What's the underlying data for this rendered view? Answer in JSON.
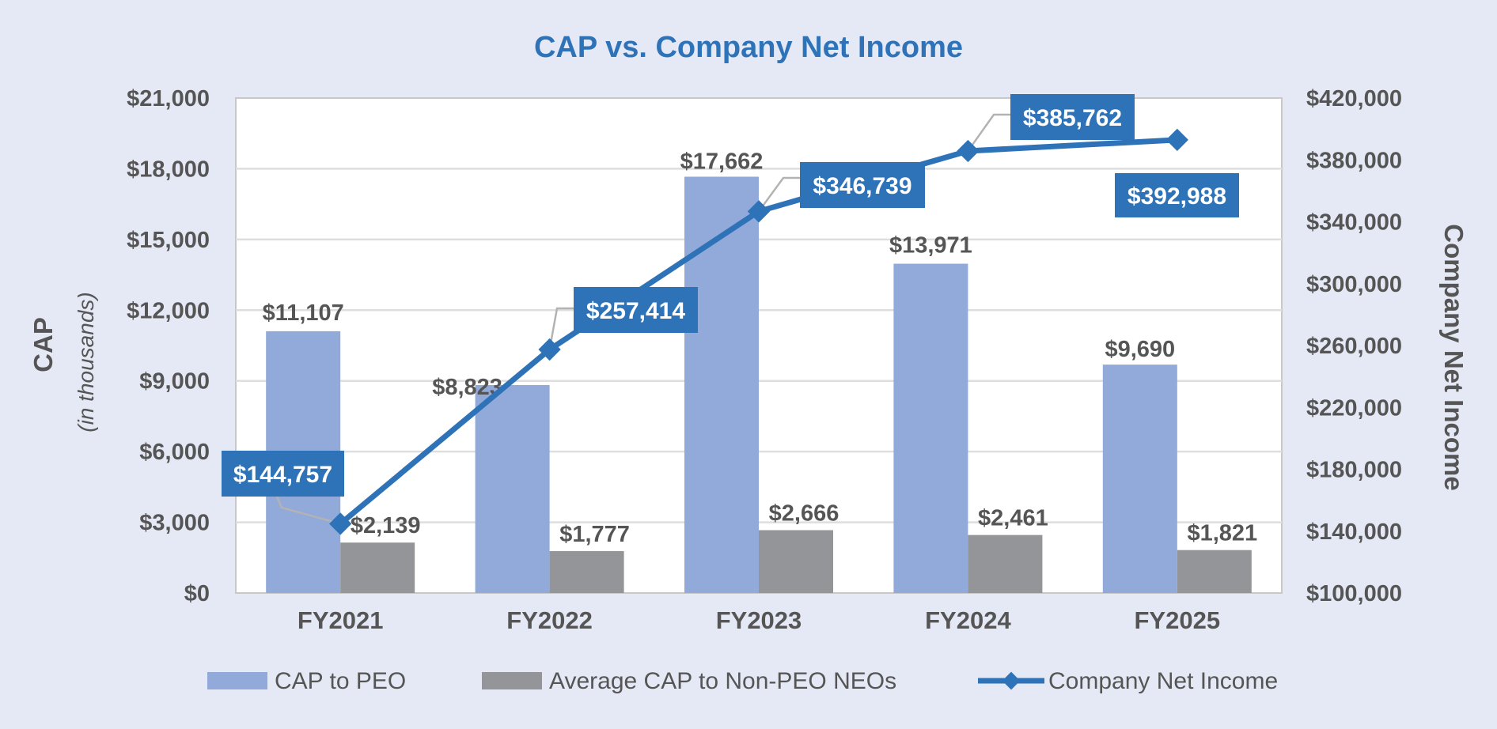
{
  "chart_data": {
    "type": "bar+line",
    "title": "CAP vs. Company Net Income",
    "categories": [
      "FY2021",
      "FY2022",
      "FY2023",
      "FY2024",
      "FY2025"
    ],
    "y_left": {
      "label": "CAP",
      "sublabel": "(in thousands)",
      "min": 0,
      "max": 21000,
      "ticks": [
        0,
        3000,
        6000,
        9000,
        12000,
        15000,
        18000,
        21000
      ],
      "tick_labels": [
        "$0",
        "$3,000",
        "$6,000",
        "$9,000",
        "$12,000",
        "$15,000",
        "$18,000",
        "$21,000"
      ]
    },
    "y_right": {
      "label": "Company Net Income",
      "min": 100000,
      "max": 420000,
      "ticks": [
        100000,
        140000,
        180000,
        220000,
        260000,
        300000,
        340000,
        380000,
        420000
      ],
      "tick_labels": [
        "$100,000",
        "$140,000",
        "$180,000",
        "$220,000",
        "$260,000",
        "$300,000",
        "$340,000",
        "$380,000",
        "$420,000"
      ]
    },
    "series": [
      {
        "name": "CAP to PEO",
        "kind": "bar",
        "axis": "left",
        "color": "#91aad9",
        "values": [
          11107,
          8823,
          17662,
          13971,
          9690
        ],
        "labels": [
          "$11,107",
          "$8,823",
          "$17,662",
          "$13,971",
          "$9,690"
        ]
      },
      {
        "name": "Average CAP to Non-PEO NEOs",
        "kind": "bar",
        "axis": "left",
        "color": "#939598",
        "values": [
          2139,
          1777,
          2666,
          2461,
          1821
        ],
        "labels": [
          "$2,139",
          "$1,777",
          "$2,666",
          "$2,461",
          "$1,821"
        ]
      },
      {
        "name": "Company Net Income",
        "kind": "line",
        "axis": "right",
        "color": "#2e72b8",
        "values": [
          144757,
          257414,
          346739,
          385762,
          392988
        ],
        "labels": [
          "$144,757",
          "$257,414",
          "$346,739",
          "$385,762",
          "$392,988"
        ]
      }
    ],
    "legend": "bottom"
  }
}
